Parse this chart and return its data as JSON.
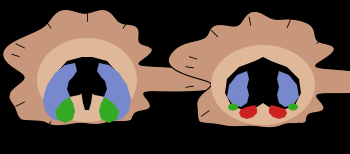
{
  "background": "#000000",
  "brain_color": "#c8967a",
  "brain_light": "#deb898",
  "blue_color": "#7788cc",
  "green_color": "#33aa22",
  "red_color": "#cc2222",
  "fig_width": 3.5,
  "fig_height": 1.54,
  "dpi": 100
}
